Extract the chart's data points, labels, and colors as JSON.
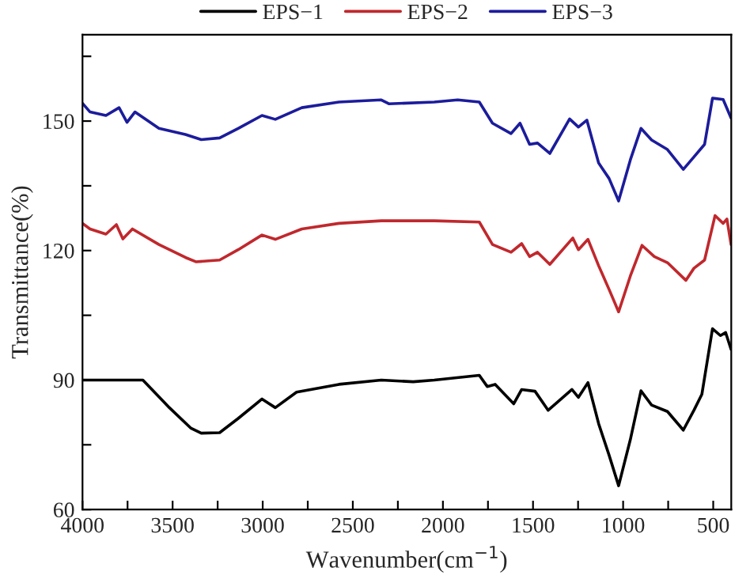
{
  "chart_data": {
    "type": "line",
    "xlabel": "Wavenumber(cm$^{−1}$)",
    "ylabel": "Transmittance(%)",
    "xlim": [
      4000,
      400
    ],
    "ylim": [
      60,
      170
    ],
    "xticks": [
      4000,
      {
        "value": 3750,
        "label": null
      },
      3500,
      {
        "value": 3250,
        "label": null
      },
      3000,
      {
        "value": 2750,
        "label": null
      },
      2500,
      {
        "value": 2250,
        "label": null
      },
      2000,
      {
        "value": 1750,
        "label": null
      },
      1500,
      {
        "value": 1250,
        "label": null
      },
      1000,
      {
        "value": 750,
        "label": null
      },
      500
    ],
    "yticks": [
      60,
      {
        "value": 75,
        "label": null
      },
      90,
      {
        "value": 105,
        "label": null
      },
      120,
      {
        "value": 135,
        "label": null
      },
      150,
      {
        "value": 165,
        "label": null
      }
    ],
    "legend": "top",
    "grid": false,
    "marker": "none",
    "line_style": "solid",
    "series": [
      {
        "name": "EPS−1",
        "color": "#000000",
        "x": [
          4000,
          3665,
          3518,
          3400,
          3341,
          3239,
          3136,
          3004,
          2930,
          2812,
          2577,
          2342,
          2165,
          2048,
          1798,
          1754,
          1710,
          1607,
          1563,
          1489,
          1416,
          1284,
          1248,
          1195,
          1136,
          1078,
          1025,
          960,
          901,
          842,
          754,
          666,
          607,
          563,
          504,
          460,
          431,
          401
        ],
        "values": [
          90,
          90,
          83.6,
          78.9,
          77.7,
          77.8,
          81.1,
          85.6,
          83.6,
          87.2,
          89.0,
          90,
          89.6,
          90,
          91.1,
          88.5,
          89,
          84.5,
          87.8,
          87.4,
          83.0,
          87.8,
          86,
          89.4,
          79.9,
          72.6,
          65.5,
          76.2,
          87.5,
          84.2,
          82.7,
          78.4,
          83,
          86.7,
          101.9,
          100.3,
          101,
          97.1
        ]
      },
      {
        "name": "EPS−2",
        "color": "#c0282d",
        "x": [
          4000,
          3958,
          3870,
          3812,
          3776,
          3723,
          3576,
          3429,
          3371,
          3239,
          3136,
          3004,
          2930,
          2783,
          2577,
          2342,
          2048,
          1798,
          1725,
          1622,
          1563,
          1519,
          1475,
          1407,
          1279,
          1248,
          1195,
          1136,
          1078,
          1025,
          960,
          895,
          827,
          754,
          652,
          607,
          548,
          490,
          445,
          424,
          401
        ],
        "values": [
          126.3,
          125,
          123.8,
          126,
          122.7,
          125,
          121.4,
          118.4,
          117.4,
          117.8,
          120.2,
          123.6,
          122.6,
          125,
          126.3,
          126.9,
          126.9,
          126.6,
          121.4,
          119.6,
          121.6,
          118.6,
          119.6,
          116.8,
          122.9,
          120.2,
          122.6,
          116.5,
          111,
          105.8,
          114.1,
          121.2,
          118.6,
          117.2,
          113.1,
          115.9,
          117.8,
          128.1,
          126.3,
          127.3,
          121.4
        ]
      },
      {
        "name": "EPS−3",
        "color": "#1c1c9c",
        "x": [
          4000,
          3958,
          3870,
          3797,
          3753,
          3709,
          3576,
          3429,
          3341,
          3239,
          3136,
          3004,
          2930,
          2783,
          2577,
          2342,
          2300,
          2048,
          1918,
          1798,
          1725,
          1622,
          1572,
          1519,
          1475,
          1407,
          1297,
          1248,
          1201,
          1136,
          1078,
          1025,
          960,
          901,
          842,
          754,
          666,
          607,
          548,
          504,
          445,
          401
        ],
        "values": [
          154.1,
          152.1,
          151.3,
          153.1,
          149.7,
          152.1,
          148.3,
          146.9,
          145.7,
          146.1,
          148.3,
          151.3,
          150.4,
          153.1,
          154.4,
          154.9,
          154,
          154.4,
          154.9,
          154.4,
          149.5,
          147.1,
          149.5,
          144.6,
          144.9,
          142.5,
          150.5,
          148.6,
          150.2,
          140.3,
          136.7,
          131.5,
          141,
          148.3,
          145.6,
          143.4,
          138.8,
          141.7,
          144.6,
          155.3,
          155,
          150.7
        ]
      }
    ]
  }
}
